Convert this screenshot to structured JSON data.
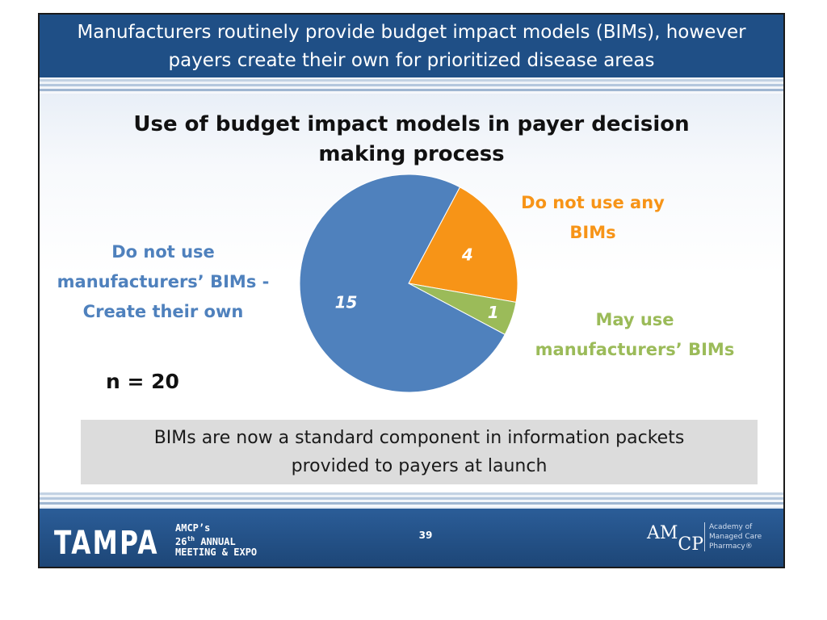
{
  "header": {
    "line1": "Manufacturers routinely provide budget impact models (BIMs), however",
    "line2": "payers create their own for prioritized disease areas"
  },
  "colors": {
    "header_bg": "#1f4f86",
    "slice_create_own": "#4f81bd",
    "slice_no_bims": "#f79417",
    "slice_may_use": "#9bbb59"
  },
  "chart_data": {
    "type": "pie",
    "title": "Use of budget impact models in payer decision making process",
    "title_lines": [
      "Use of budget impact models in payer decision",
      "making process"
    ],
    "slices": [
      {
        "label": "Do not use any BIMs",
        "value": 4,
        "value_label": "4",
        "color": "#f79417",
        "label_lines": [
          "Do not use any",
          "BIMs"
        ]
      },
      {
        "label": "May use manufacturers' BIMs",
        "value": 1,
        "value_label": "1",
        "color": "#9bbb59",
        "label_lines": [
          "May use",
          "manufacturers’ BIMs"
        ]
      },
      {
        "label": "Do not use manufacturers' BIMs - Create their own",
        "value": 15,
        "value_label": "15",
        "color": "#4f81bd",
        "label_lines": [
          "Do not use",
          "manufacturers’ BIMs -",
          "Create their own"
        ]
      }
    ],
    "start_angle_deg": 28,
    "sample_size": "n = 20"
  },
  "callout": {
    "line1": "BIMs are now a standard component in information packets",
    "line2": "provided to payers at launch"
  },
  "footer": {
    "city": "TAMPA",
    "event_line1": "AMCP’s",
    "event_line2_num": "26",
    "event_line2_sup": "th",
    "event_line2_rest": " ANNUAL",
    "event_line3": "MEETING & EXPO",
    "page_number": "39",
    "logo_am": "AM",
    "logo_cp": "CP",
    "org_line1": "Academy of",
    "org_line2": "Managed Care",
    "org_line3": "Pharmacy®"
  }
}
